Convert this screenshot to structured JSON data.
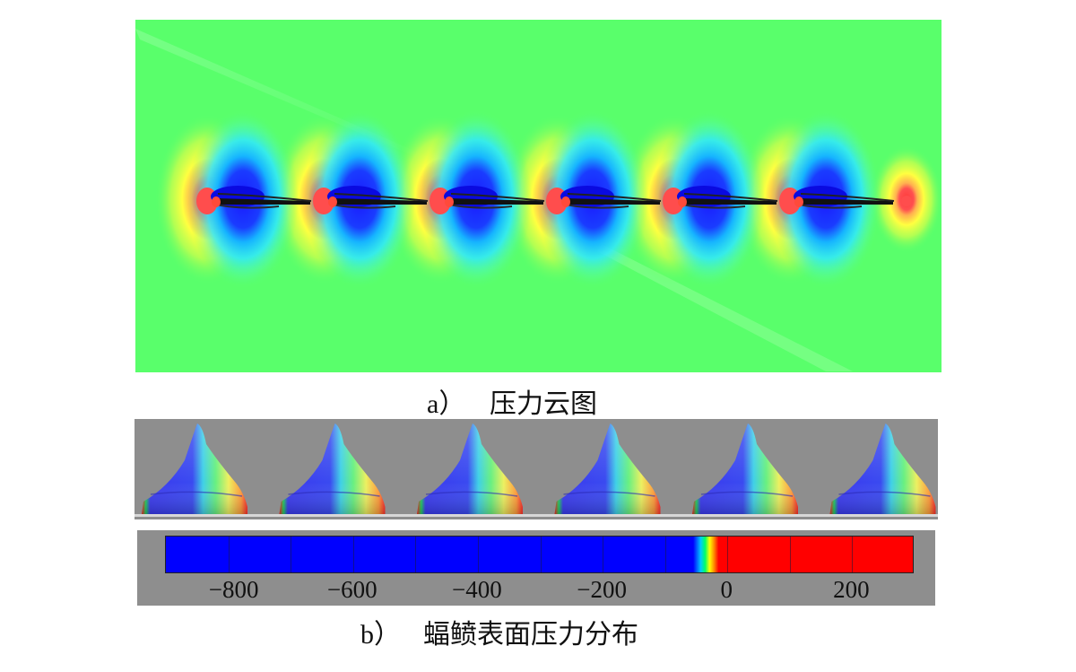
{
  "caption_a": {
    "tag": "a）",
    "text": "压力云图"
  },
  "caption_b": {
    "tag": "b）",
    "text": "蝠鲼表面压力分布"
  },
  "colorbar": {
    "min": -900,
    "max": 300,
    "ticks": [
      "−800",
      "−600",
      "−400",
      "−200",
      "0",
      "200"
    ],
    "colors": {
      "low": "#0000ff",
      "mid_cyan": "#00c8ff",
      "mid_green": "#00ff66",
      "mid_yellow": "#ffff00",
      "high": "#ff0000"
    }
  },
  "contour": {
    "background_color": "#59ff6b",
    "fin_count": 6
  },
  "surface": {
    "background_color": "#8e8e8e",
    "fin_count": 6
  }
}
